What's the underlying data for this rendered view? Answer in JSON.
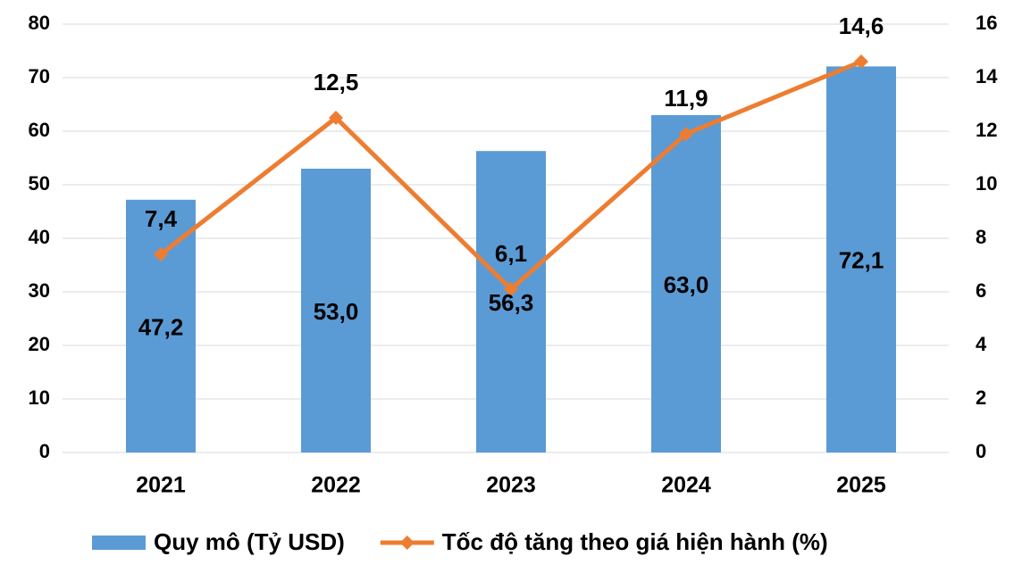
{
  "chart_data": {
    "type": "bar-line",
    "categories": [
      "2021",
      "2022",
      "2023",
      "2024",
      "2025"
    ],
    "series": [
      {
        "name": "Quy mô (Tỷ USD)",
        "type": "bar",
        "color": "#5b9bd5",
        "values": [
          47.2,
          53.0,
          56.3,
          63.0,
          72.1
        ],
        "value_labels": [
          "47,2",
          "53,0",
          "56,3",
          "63,0",
          "72,1"
        ]
      },
      {
        "name": "Tốc độ tăng theo giá hiện hành (%)",
        "type": "line",
        "axis": "y2",
        "color": "#ed7d31",
        "values": [
          7.4,
          12.5,
          6.1,
          11.9,
          14.6
        ],
        "value_labels": [
          "7,4",
          "12,5",
          "6,1",
          "11,9",
          "14,6"
        ]
      }
    ],
    "ylim": [
      0,
      80
    ],
    "yticks": [
      0,
      10,
      20,
      30,
      40,
      50,
      60,
      70,
      80
    ],
    "y2lim": [
      0,
      16
    ],
    "y2ticks": [
      0,
      2,
      4,
      6,
      8,
      10,
      12,
      14,
      16
    ],
    "grid": true
  }
}
